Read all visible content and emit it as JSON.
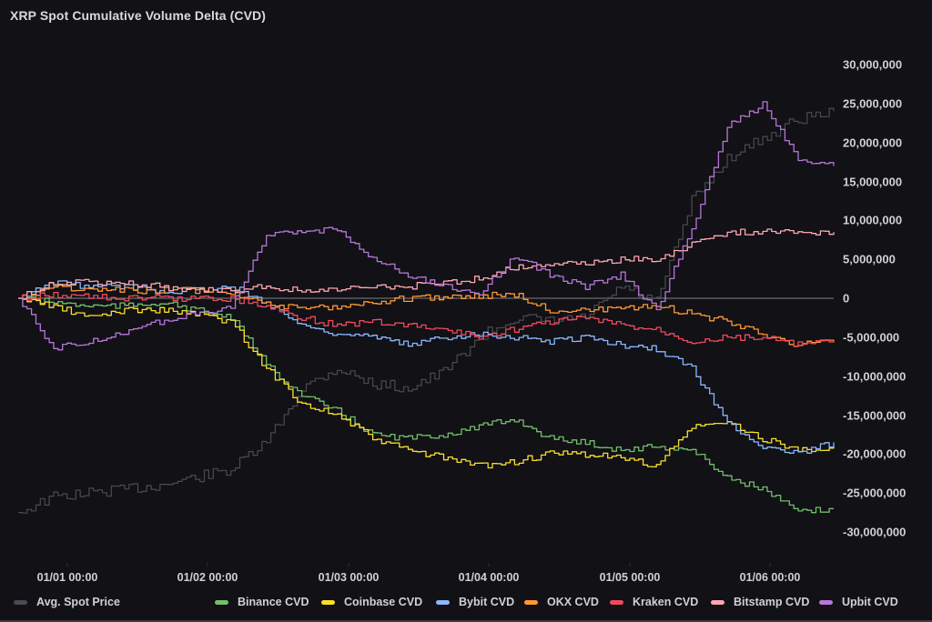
{
  "title": "XRP Spot Cumulative Volume Delta (CVD)",
  "colors": {
    "background": "#111116",
    "zero_line": "#5a5b60",
    "avg_spot_price": "#4a4b50",
    "binance": "#73bf69",
    "coinbase": "#fade2a",
    "bybit": "#8ab8ff",
    "okx": "#ff9830",
    "kraken": "#f2495c",
    "bitstamp": "#ffa6b0",
    "upbit": "#b877d9"
  },
  "y_axis": {
    "ticks": [
      "30,000,000",
      "25,000,000",
      "20,000,000",
      "15,000,000",
      "10,000,000",
      "5,000,000",
      "0",
      "-5,000,000",
      "-10,000,000",
      "-15,000,000",
      "-20,000,000",
      "-25,000,000",
      "-30,000,000"
    ]
  },
  "x_axis": {
    "ticks": [
      "01/01 00:00",
      "01/02 00:00",
      "01/03 00:00",
      "01/04 00:00",
      "01/05 00:00",
      "01/06 00:00"
    ]
  },
  "legend": [
    {
      "key": "avg_spot_price",
      "label": "Avg. Spot Price"
    },
    {
      "key": "binance",
      "label": "Binance CVD"
    },
    {
      "key": "coinbase",
      "label": "Coinbase CVD"
    },
    {
      "key": "bybit",
      "label": "Bybit CVD"
    },
    {
      "key": "okx",
      "label": "OKX CVD"
    },
    {
      "key": "kraken",
      "label": "Kraken CVD"
    },
    {
      "key": "bitstamp",
      "label": "Bitstamp CVD"
    },
    {
      "key": "upbit",
      "label": "Upbit CVD"
    }
  ],
  "chart_data": {
    "type": "line",
    "title": "XRP Spot Cumulative Volume Delta (CVD)",
    "xlabel": "",
    "ylabel": "",
    "ylim": [
      -30000000,
      30000000
    ],
    "grid": false,
    "legend_position": "bottom",
    "x": [
      "12/31 15:00",
      "01/01 00:00",
      "01/01 06:00",
      "01/01 12:00",
      "01/01 18:00",
      "01/02 00:00",
      "01/02 06:00",
      "01/02 12:00",
      "01/02 18:00",
      "01/03 00:00",
      "01/03 06:00",
      "01/03 12:00",
      "01/03 18:00",
      "01/04 00:00",
      "01/04 06:00",
      "01/04 12:00",
      "01/04 18:00",
      "01/05 00:00",
      "01/05 06:00",
      "01/05 12:00",
      "01/05 18:00",
      "01/06 00:00",
      "01/06 06:00",
      "01/06 09:00"
    ],
    "series": [
      {
        "name": "Avg. Spot Price",
        "axis": "secondary (unlabeled)",
        "values": [
          -27500000,
          -25500000,
          -25000000,
          -24500000,
          -24000000,
          -23000000,
          -22000000,
          -18500000,
          -11500000,
          -9000000,
          -11000000,
          -11500000,
          -9500000,
          -5000000,
          -2500000,
          -3000000,
          -2500000,
          1500000,
          -500000,
          12500000,
          18000000,
          20500000,
          23000000,
          24000000
        ]
      },
      {
        "name": "Binance CVD",
        "values": [
          0,
          -500000,
          -1000000,
          -1000000,
          -500000,
          -1500000,
          -2500000,
          -8500000,
          -12500000,
          -14500000,
          -17500000,
          -18000000,
          -17500000,
          -16500000,
          -15500000,
          -18000000,
          -18500000,
          -19500000,
          -19000000,
          -19500000,
          -23000000,
          -24500000,
          -27500000,
          -27000000
        ]
      },
      {
        "name": "Coinbase CVD",
        "values": [
          0,
          -1000000,
          -2500000,
          -1500000,
          -1500000,
          -2000000,
          -3000000,
          -9000000,
          -13500000,
          -15000000,
          -18000000,
          -19500000,
          -20500000,
          -21500000,
          -21000000,
          -20000000,
          -20000000,
          -20500000,
          -21500000,
          -16500000,
          -16000000,
          -18000000,
          -19500000,
          -19000000
        ]
      },
      {
        "name": "Bybit CVD",
        "values": [
          0,
          2000000,
          1500000,
          1500000,
          1000000,
          1000000,
          1500000,
          -500000,
          -3500000,
          -4500000,
          -5000000,
          -6000000,
          -5000000,
          -4500000,
          -5000000,
          -5500000,
          -5000000,
          -6000000,
          -6500000,
          -9000000,
          -16000000,
          -19000000,
          -20000000,
          -18500000
        ]
      },
      {
        "name": "OKX CVD",
        "values": [
          0,
          1500000,
          1000000,
          1000000,
          1000000,
          1000000,
          800000,
          -500000,
          -1500000,
          -1000000,
          -500000,
          0,
          200000,
          300000,
          500000,
          -1500000,
          -1500000,
          -1500000,
          -1000000,
          -2000000,
          -3000000,
          -4500000,
          -6000000,
          -5500000
        ]
      },
      {
        "name": "Kraken CVD",
        "values": [
          0,
          500000,
          200000,
          0,
          0,
          0,
          0,
          -1000000,
          -2500000,
          -3500000,
          -3000000,
          -3500000,
          -4000000,
          -5000000,
          -4000000,
          -3000000,
          -2500000,
          -3500000,
          -4000000,
          -5500000,
          -5000000,
          -5000000,
          -6000000,
          -5500000
        ]
      },
      {
        "name": "Bitstamp CVD",
        "values": [
          0,
          2000000,
          2000000,
          2000000,
          1500000,
          1000000,
          1000000,
          1500000,
          1000000,
          1000000,
          1500000,
          1500000,
          2000000,
          2500000,
          4000000,
          4500000,
          4500000,
          5000000,
          5000000,
          7000000,
          8500000,
          8500000,
          8500000,
          8500000
        ]
      },
      {
        "name": "Upbit CVD",
        "values": [
          0,
          -6500000,
          -5500000,
          -4500000,
          -3000000,
          -2000000,
          -1000000,
          8000000,
          8500000,
          9000000,
          5000000,
          3000000,
          1500000,
          500000,
          5500000,
          3000000,
          1500000,
          3000000,
          -1500000,
          9000000,
          22000000,
          25000000,
          18000000,
          17000000
        ]
      }
    ]
  }
}
